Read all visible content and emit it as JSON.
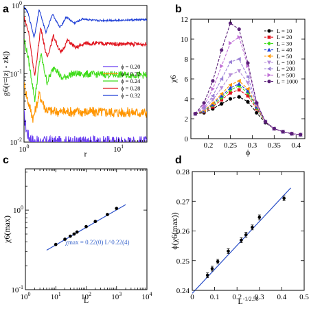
{
  "colors": {
    "blue": "#1f3fd6",
    "red": "#e0141e",
    "green": "#3fdc1a",
    "orange": "#ff9500",
    "violet": "#9a2fd6",
    "fit_line": "#2a4fc8"
  },
  "panel_labels": [
    "a",
    "b",
    "c",
    "d"
  ],
  "chart_data": [
    {
      "type": "line",
      "panel": "a",
      "xlabel": "r",
      "ylabel": "g6(r=|zj - zk|)",
      "xscale": "log",
      "yscale": "log",
      "xlim": [
        1,
        20
      ],
      "ylim": [
        0.01,
        1
      ],
      "x_ticks": [
        "10^0",
        "10^1"
      ],
      "y_ticks": [
        "10^-2",
        "10^-1",
        "10^0"
      ],
      "legend_position": "right-center",
      "series": [
        {
          "name": "ϕ = 0.20",
          "color_key": "blue_light",
          "color": "#6a3ff0",
          "plateau": 0.01,
          "points": [
            [
              1.0,
              0.025
            ],
            [
              1.05,
              0.016
            ],
            [
              1.12,
              0.012
            ],
            [
              1.3,
              0.01
            ]
          ]
        },
        {
          "name": "ϕ = 0.22",
          "color": "#ff9500",
          "plateau": 0.027,
          "points": [
            [
              1.0,
              0.07
            ],
            [
              1.1,
              0.04
            ],
            [
              1.25,
              0.022
            ],
            [
              1.45,
              0.05
            ],
            [
              1.7,
              0.03
            ],
            [
              2.0,
              0.028
            ],
            [
              20,
              0.027
            ]
          ]
        },
        {
          "name": "ϕ = 0.24",
          "color": "#3fdc1a",
          "plateau": 0.095,
          "points": [
            [
              1.0,
              0.32
            ],
            [
              1.1,
              0.18
            ],
            [
              1.3,
              0.042
            ],
            [
              1.5,
              0.2
            ],
            [
              1.75,
              0.075
            ],
            [
              2.1,
              0.13
            ],
            [
              2.5,
              0.085
            ],
            [
              3.2,
              0.1
            ],
            [
              20,
              0.095
            ]
          ]
        },
        {
          "name": "ϕ = 0.28",
          "color": "#e0141e",
          "plateau": 0.27,
          "points": [
            [
              1.0,
              0.68
            ],
            [
              1.12,
              0.4
            ],
            [
              1.3,
              0.09
            ],
            [
              1.5,
              0.48
            ],
            [
              1.75,
              0.17
            ],
            [
              2.05,
              0.36
            ],
            [
              2.45,
              0.2
            ],
            [
              2.9,
              0.31
            ],
            [
              3.5,
              0.24
            ],
            [
              4.5,
              0.28
            ],
            [
              20,
              0.27
            ]
          ]
        },
        {
          "name": "ϕ = 0.32",
          "color": "#1f3fd6",
          "plateau": 0.62,
          "points": [
            [
              1.0,
              0.95
            ],
            [
              1.1,
              0.78
            ],
            [
              1.28,
              0.34
            ],
            [
              1.45,
              0.88
            ],
            [
              1.7,
              0.4
            ],
            [
              2.0,
              0.75
            ],
            [
              2.4,
              0.47
            ],
            [
              2.8,
              0.68
            ],
            [
              3.4,
              0.55
            ],
            [
              4.2,
              0.64
            ],
            [
              5.5,
              0.6
            ],
            [
              20,
              0.62
            ]
          ]
        }
      ]
    },
    {
      "type": "line",
      "panel": "b",
      "xlabel": "ϕ",
      "ylabel": "χ6",
      "xlim": [
        0.16,
        0.42
      ],
      "ylim": [
        0,
        12
      ],
      "x_ticks": [
        "0.2",
        "0.25",
        "0.3",
        "0.35",
        "0.4"
      ],
      "y_ticks": [
        "0",
        "2",
        "4",
        "6",
        "8",
        "10",
        "12"
      ],
      "legend_position": "top-right",
      "x": [
        0.17,
        0.19,
        0.21,
        0.23,
        0.25,
        0.27,
        0.29,
        0.31,
        0.33,
        0.35,
        0.37,
        0.39,
        0.41
      ],
      "series": [
        {
          "name": "L = 10",
          "color": "#000000",
          "marker": "circle",
          "values": [
            2.5,
            2.6,
            3.0,
            3.5,
            4.0,
            4.2,
            3.7,
            2.6,
            1.6,
            1.0,
            0.7,
            0.5,
            0.4
          ]
        },
        {
          "name": "L = 20",
          "color": "#e0141e",
          "marker": "square",
          "values": [
            2.5,
            2.7,
            3.2,
            3.9,
            4.6,
            4.9,
            4.3,
            3.0,
            1.7,
            1.0,
            0.7,
            0.5,
            0.4
          ]
        },
        {
          "name": "L = 30",
          "color": "#3fdc1a",
          "marker": "diamond",
          "values": [
            2.5,
            2.75,
            3.35,
            4.1,
            4.9,
            5.3,
            4.6,
            3.1,
            1.7,
            1.0,
            0.7,
            0.5,
            0.4
          ]
        },
        {
          "name": "L = 40",
          "color": "#1f3fd6",
          "marker": "triangle-up",
          "values": [
            2.5,
            2.8,
            3.45,
            4.3,
            5.1,
            5.5,
            4.8,
            3.2,
            1.7,
            1.0,
            0.7,
            0.5,
            0.4
          ]
        },
        {
          "name": "L = 50",
          "color": "#ff9500",
          "marker": "triangle-left",
          "values": [
            2.5,
            2.85,
            3.55,
            4.5,
            5.4,
            5.8,
            5.0,
            3.3,
            1.7,
            1.0,
            0.7,
            0.5,
            0.4
          ]
        },
        {
          "name": "L = 100",
          "color": "#b58bd8",
          "marker": "triangle-down",
          "values": [
            2.5,
            2.95,
            3.9,
            5.1,
            6.4,
            6.8,
            5.6,
            3.4,
            1.7,
            1.0,
            0.7,
            0.5,
            0.4
          ]
        },
        {
          "name": "L = 200",
          "color": "#9a7fd6",
          "marker": "triangle-left",
          "values": [
            2.5,
            3.1,
            4.3,
            6.0,
            7.7,
            8.0,
            6.2,
            3.5,
            1.7,
            1.0,
            0.7,
            0.5,
            0.4
          ]
        },
        {
          "name": "L = 500",
          "color": "#c06fd6",
          "marker": "triangle-right",
          "values": [
            2.5,
            3.3,
            5.0,
            7.3,
            9.6,
            10.2,
            7.3,
            3.6,
            1.7,
            1.0,
            0.7,
            0.5,
            0.4
          ]
        },
        {
          "name": "L = 1000",
          "color": "#5a1f78",
          "marker": "circle",
          "values": [
            2.5,
            3.6,
            5.8,
            8.9,
            11.6,
            11.0,
            7.6,
            3.6,
            1.7,
            1.0,
            0.7,
            0.5,
            0.4
          ]
        }
      ]
    },
    {
      "type": "scatter",
      "panel": "c",
      "xlabel": "L",
      "ylabel": "χ6(max)",
      "xscale": "log",
      "yscale": "log",
      "xlim": [
        1,
        10000
      ],
      "ylim": [
        0.1,
        3.3
      ],
      "x_ticks": [
        "10^0",
        "10^1",
        "10^2",
        "10^3",
        "10^4"
      ],
      "y_ticks": [
        "10^-1",
        "10^0"
      ],
      "annotation": "χmax = 0.22(0) L^0.22(4)",
      "x": [
        10,
        20,
        30,
        40,
        50,
        100,
        200,
        500,
        1000
      ],
      "y": [
        0.37,
        0.43,
        0.47,
        0.5,
        0.53,
        0.62,
        0.72,
        0.88,
        1.05
      ],
      "fit": {
        "prefactor": 0.22,
        "exponent": 0.22,
        "x_range": [
          5,
          2000
        ]
      }
    },
    {
      "type": "scatter",
      "panel": "d",
      "xlabel": "L^-1/2.58",
      "ylabel": "ϕ(χ6(max))",
      "xlim": [
        0,
        0.5
      ],
      "ylim": [
        0.24,
        0.28
      ],
      "x_ticks": [
        "0",
        "0.1",
        "0.2",
        "0.3",
        "0.4",
        "0.5"
      ],
      "y_ticks": [
        "0.24",
        "0.25",
        "0.26",
        "0.27",
        "0.28"
      ],
      "x": [
        0.068,
        0.089,
        0.114,
        0.161,
        0.219,
        0.24,
        0.268,
        0.3,
        0.41
      ],
      "y": [
        0.2451,
        0.2473,
        0.2497,
        0.2532,
        0.2569,
        0.2587,
        0.2612,
        0.2646,
        0.271
      ],
      "fit": {
        "x_range": [
          0,
          0.44
        ],
        "y_range": [
          0.239,
          0.2745
        ]
      }
    }
  ]
}
